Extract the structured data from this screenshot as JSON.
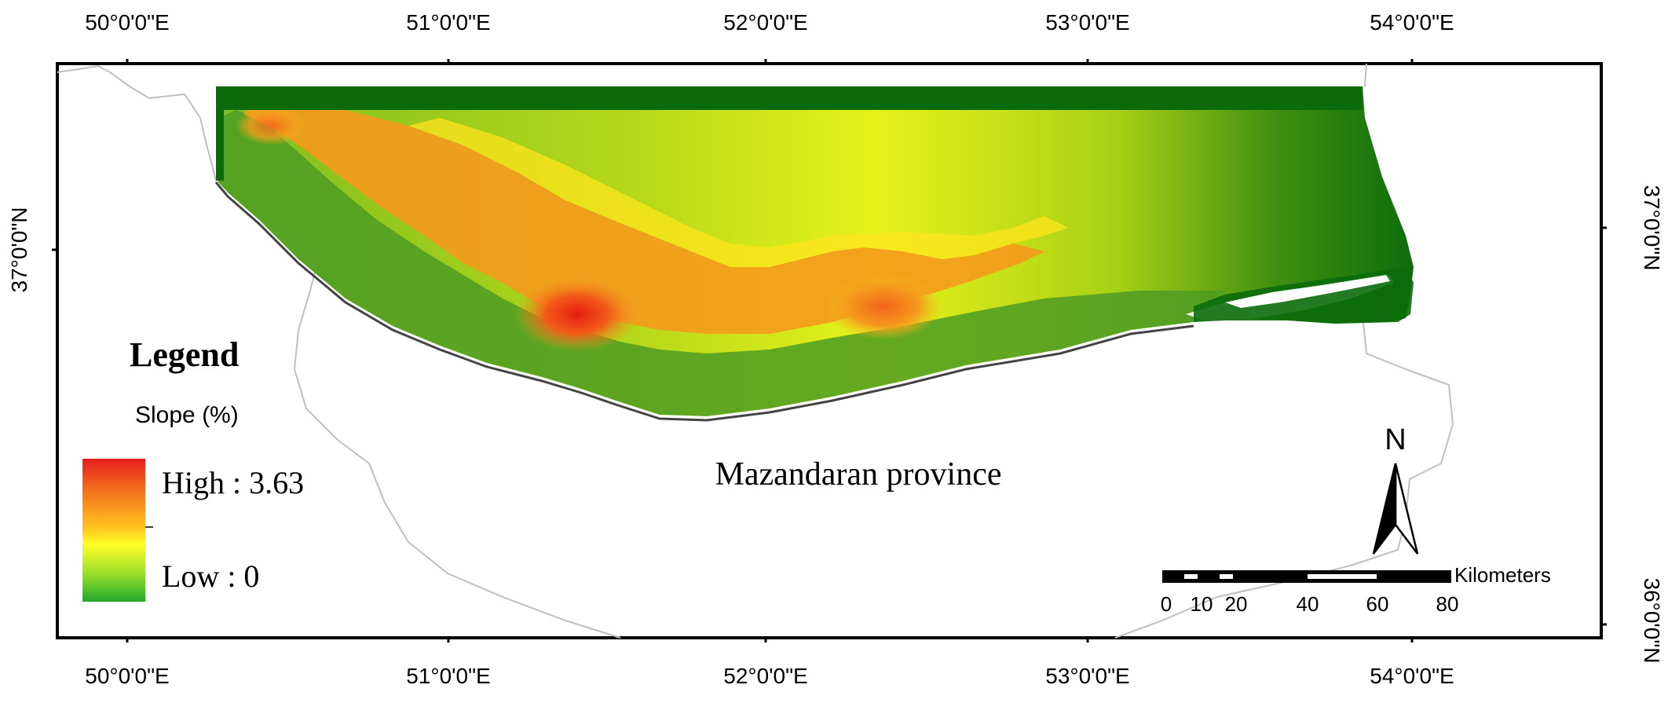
{
  "map": {
    "top_ticks": [
      "50°0'0\"E",
      "51°0'0\"E",
      "52°0'0\"E",
      "53°0'0\"E",
      "54°0'0\"E"
    ],
    "bottom_ticks": [
      "50°0'0\"E",
      "51°0'0\"E",
      "52°0'0\"E",
      "53°0'0\"E",
      "54°0'0\"E"
    ],
    "left_ticks": [
      "37°0'0\"N"
    ],
    "right_ticks": [
      "37°0'0\"N",
      "36°0'0\"N"
    ],
    "region_label": "Mazandaran province",
    "colors": {
      "high": "#e8261f",
      "mid_high": "#f39a1c",
      "mid": "#ffff1e",
      "low": "#33a02c",
      "dark_green": "#0b6b0b",
      "frame": "#000000",
      "boundary": "#bdbdbd"
    }
  },
  "legend": {
    "title": "Legend",
    "subtitle": "Slope (%)",
    "high_label": "High : 3.63",
    "low_label": "Low : 0"
  },
  "north_arrow": {
    "label": "N"
  },
  "scale_bar": {
    "unit": "Kilometers",
    "ticks": [
      "0",
      "10",
      "20",
      "40",
      "60",
      "80"
    ]
  }
}
